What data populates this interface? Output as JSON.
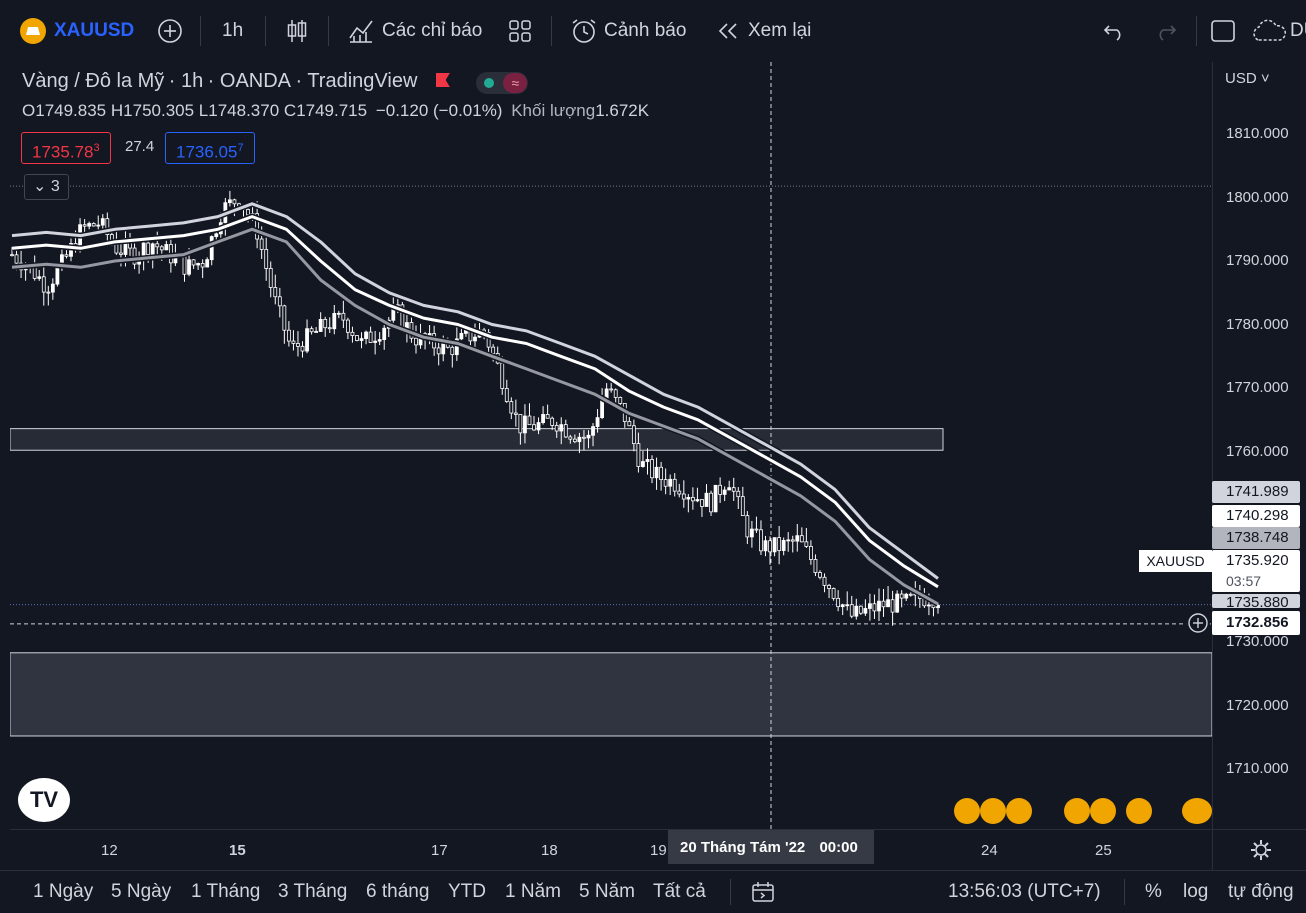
{
  "toolbar": {
    "symbol": "XAUUSD",
    "interval": "1h",
    "indicators_label": "Các chỉ báo",
    "alerts_label": "Cảnh báo",
    "replay_label": "Xem lại",
    "right_cut_label": "DU"
  },
  "legend": {
    "title": "Vàng / Đô la Mỹ",
    "interval": "1h",
    "broker": "OANDA",
    "platform": "TradingView",
    "open_key": "O",
    "open": "1749.835",
    "high_key": "H",
    "high": "1750.305",
    "low_key": "L",
    "low": "1748.370",
    "close_key": "C",
    "close": "1749.715",
    "change": "−0.120 (−0.01%)",
    "volume_label": "Khối lượng",
    "volume": "1.672K",
    "sell_main": "1735.78",
    "sell_sup": "3",
    "spread": "27.4",
    "buy_main": "1736.05",
    "buy_sup": "7",
    "collapse_count": "3"
  },
  "price_axis": {
    "currency": "USD",
    "ticks": [
      "1810.000",
      "1800.000",
      "1790.000",
      "1780.000",
      "1770.000",
      "1760.000",
      "1730.000",
      "1720.000",
      "1710.000"
    ],
    "tags": [
      "1741.989",
      "1740.298",
      "1738.748",
      "1735.880"
    ],
    "symbol_tag": "XAUUSD",
    "last_price": "1735.920",
    "countdown": "03:57",
    "crosshair_price": "1732.856"
  },
  "time_axis": {
    "labels": [
      "12",
      "15",
      "17",
      "18",
      "19",
      "24",
      "25"
    ],
    "crosshair_label": "20 Tháng Tám '22",
    "crosshair_time": "00:00"
  },
  "bottom_bar": {
    "ranges": [
      "1 Ngày",
      "5 Ngày",
      "1 Tháng",
      "3 Tháng",
      "6 tháng",
      "YTD",
      "1 Năm",
      "5 Năm",
      "Tất cả"
    ],
    "clock": "13:56:03 (UTC+7)",
    "percent": "%",
    "log": "log",
    "auto": "tự động"
  },
  "logo_text": "TV",
  "colors": {
    "background": "#131722",
    "sell": "#f23645",
    "buy": "#2962ff",
    "candle": "#ffffff",
    "zone": "#434651"
  },
  "chart_data": {
    "type": "candlestick",
    "symbol": "XAUUSD",
    "interval": "1h",
    "ylim": [
      1703,
      1823
    ],
    "x_labels": [
      "12",
      "15",
      "17",
      "18",
      "19",
      "24",
      "25"
    ],
    "series": [
      {
        "name": "close_path",
        "values": [
          1791,
          1789,
          1786,
          1790,
          1795,
          1796,
          1792,
          1791,
          1793,
          1791,
          1789,
          1790,
          1798,
          1800,
          1795,
          1784,
          1776,
          1778,
          1780,
          1781,
          1777,
          1779,
          1782,
          1778,
          1777,
          1776,
          1778,
          1779,
          1772,
          1764,
          1764,
          1765,
          1763,
          1762,
          1770,
          1766,
          1758,
          1756,
          1755,
          1753,
          1752,
          1756,
          1748,
          1745,
          1745,
          1746,
          1742,
          1738,
          1734,
          1735,
          1736,
          1736,
          1737,
          1737
        ]
      },
      {
        "name": "ema_upper",
        "values": [
          1794,
          1794.5,
          1794,
          1795,
          1795.5,
          1796,
          1797,
          1799,
          1797,
          1793,
          1788,
          1785,
          1783,
          1782,
          1780,
          1779,
          1777,
          1775,
          1772,
          1769,
          1767,
          1764,
          1761,
          1758,
          1754,
          1748,
          1744,
          1740
        ]
      },
      {
        "name": "ema_mid",
        "values": [
          1792,
          1792.5,
          1792,
          1793,
          1793.5,
          1794,
          1795,
          1797,
          1795,
          1790,
          1785.5,
          1783,
          1781,
          1780,
          1778,
          1777,
          1775,
          1773,
          1769.5,
          1767,
          1765,
          1762,
          1759,
          1756,
          1752,
          1746,
          1742,
          1738.7
        ]
      },
      {
        "name": "ema_lower",
        "values": [
          1789,
          1789.5,
          1789,
          1790,
          1790.5,
          1791,
          1793,
          1795,
          1793,
          1787,
          1783,
          1780,
          1778,
          1777,
          1775,
          1773,
          1771,
          1769,
          1766,
          1764,
          1762,
          1759,
          1756,
          1753,
          1749,
          1743,
          1739,
          1736
        ]
      }
    ],
    "zones": [
      {
        "from": 1760.2,
        "to": 1763.6
      },
      {
        "from": 1715.2,
        "to": 1728.3
      }
    ],
    "horizontal_lines": [
      1801.8,
      1735.88,
      1732.856
    ]
  }
}
